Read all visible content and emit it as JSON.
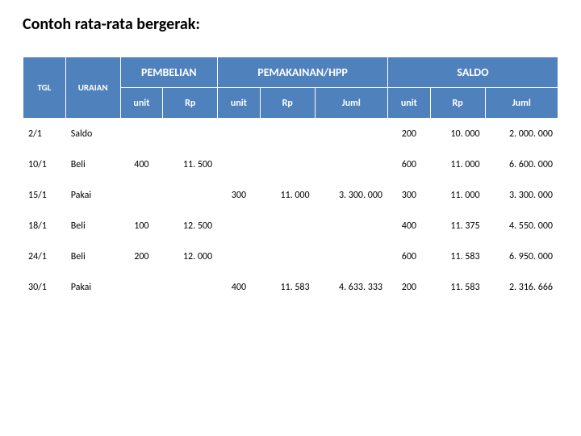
{
  "title": "Contoh rata-rata bergerak:",
  "colors": {
    "header_bg": "#4f81bd",
    "header_fg": "#ffffff",
    "grid_line": "#ffffff",
    "body_bg": "#ffffff",
    "body_fg": "#000000"
  },
  "table": {
    "group_headers": {
      "tgl": "TGL",
      "uraian": "URAIAN",
      "pembelian": "PEMBELIAN",
      "pemakaian": "PEMAKAINAN/HPP",
      "saldo": "SALDO"
    },
    "sub_headers": {
      "unit": "unit",
      "rp": "Rp",
      "juml": "Juml"
    },
    "rows": [
      {
        "tgl": "2/1",
        "uraian": "Saldo",
        "p_unit": "",
        "p_rp": "",
        "k_unit": "",
        "k_rp": "",
        "k_juml": "",
        "s_unit": "200",
        "s_rp": "10. 000",
        "s_juml": "2. 000. 000"
      },
      {
        "tgl": "10/1",
        "uraian": "Beli",
        "p_unit": "400",
        "p_rp": "11. 500",
        "k_unit": "",
        "k_rp": "",
        "k_juml": "",
        "s_unit": "600",
        "s_rp": "11. 000",
        "s_juml": "6. 600. 000"
      },
      {
        "tgl": "15/1",
        "uraian": "Pakai",
        "p_unit": "",
        "p_rp": "",
        "k_unit": "300",
        "k_rp": "11. 000",
        "k_juml": "3. 300. 000",
        "s_unit": "300",
        "s_rp": "11. 000",
        "s_juml": "3. 300. 000"
      },
      {
        "tgl": "18/1",
        "uraian": "Beli",
        "p_unit": "100",
        "p_rp": "12. 500",
        "k_unit": "",
        "k_rp": "",
        "k_juml": "",
        "s_unit": "400",
        "s_rp": "11. 375",
        "s_juml": "4. 550. 000"
      },
      {
        "tgl": "24/1",
        "uraian": "Beli",
        "p_unit": "200",
        "p_rp": "12. 000",
        "k_unit": "",
        "k_rp": "",
        "k_juml": "",
        "s_unit": "600",
        "s_rp": "11. 583",
        "s_juml": "6. 950. 000"
      },
      {
        "tgl": "30/1",
        "uraian": "Pakai",
        "p_unit": "",
        "p_rp": "",
        "k_unit": "400",
        "k_rp": "11. 583",
        "k_juml": "4. 633. 333",
        "s_unit": "200",
        "s_rp": "11. 583",
        "s_juml": "2. 316. 666"
      }
    ]
  }
}
